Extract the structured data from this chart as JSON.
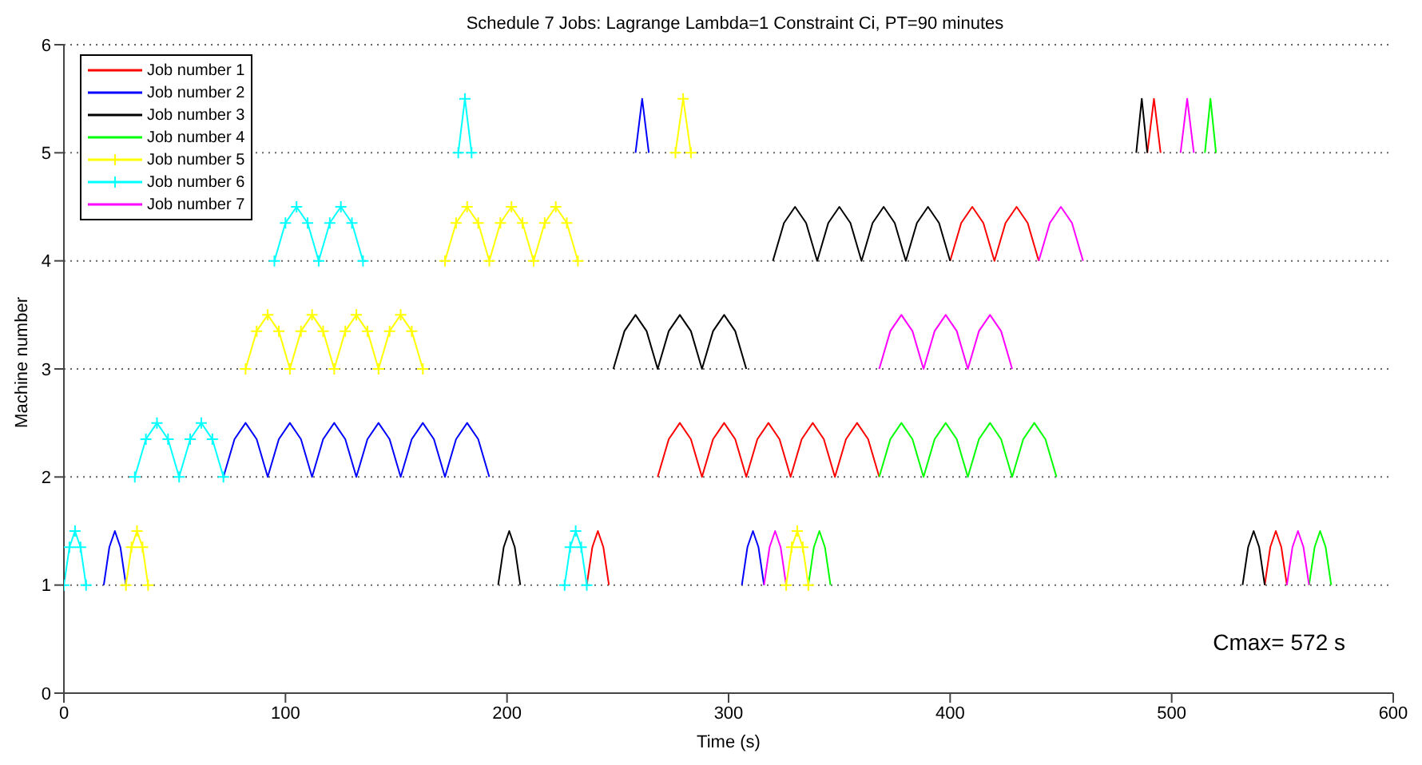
{
  "chart_data": {
    "type": "line",
    "title": "Schedule 7 Jobs: Lagrange Lambda=1 Constraint Ci, PT=90 minutes",
    "xlabel": "Time (s)",
    "ylabel": "Machine number",
    "annotations": [
      "Cmax= 572 s"
    ],
    "xlim": [
      0,
      600
    ],
    "xticks": [
      0,
      100,
      200,
      300,
      400,
      500,
      600
    ],
    "ylim": [
      0,
      6
    ],
    "yticks": [
      0,
      1,
      2,
      3,
      4,
      5,
      6
    ],
    "grid": "y",
    "legend": "top left",
    "series": [
      {
        "name": "Job number 1",
        "color": "#ff0000",
        "marker": "none",
        "x": [
          236,
          238.5,
          241,
          243.5,
          246,
          null,
          268,
          273,
          278,
          283,
          288,
          293,
          298,
          303,
          308,
          313,
          318,
          323,
          328,
          333,
          338,
          343,
          348,
          353,
          358,
          363,
          368,
          null,
          400,
          405,
          410,
          415,
          420,
          425,
          430,
          435,
          440,
          null,
          489,
          492,
          495,
          null,
          542,
          544.5,
          547,
          549.5,
          552
        ],
        "values": [
          1,
          1.35,
          1.5,
          1.35,
          1,
          null,
          2,
          2.35,
          2.5,
          2.35,
          2,
          2.35,
          2.5,
          2.35,
          2,
          2.35,
          2.5,
          2.35,
          2,
          2.35,
          2.5,
          2.35,
          2,
          2.35,
          2.5,
          2.35,
          2,
          null,
          4,
          4.35,
          4.5,
          4.35,
          4,
          4.35,
          4.5,
          4.35,
          4,
          null,
          5,
          5.5,
          5,
          null,
          1,
          1.35,
          1.5,
          1.35,
          1
        ]
      },
      {
        "name": "Job number 2",
        "color": "#0000ff",
        "marker": "none",
        "x": [
          18,
          20.5,
          23,
          25.5,
          28,
          null,
          72,
          77,
          82,
          87,
          92,
          97,
          102,
          107,
          112,
          117,
          122,
          127,
          132,
          137,
          142,
          147,
          152,
          157,
          162,
          167,
          172,
          177,
          182,
          187,
          192,
          null,
          258,
          261,
          264,
          null,
          306,
          308.5,
          311,
          313.5,
          316
        ],
        "values": [
          1,
          1.35,
          1.5,
          1.35,
          1,
          null,
          2,
          2.35,
          2.5,
          2.35,
          2,
          2.35,
          2.5,
          2.35,
          2,
          2.35,
          2.5,
          2.35,
          2,
          2.35,
          2.5,
          2.35,
          2,
          2.35,
          2.5,
          2.35,
          2,
          2.35,
          2.5,
          2.35,
          2,
          null,
          5,
          5.5,
          5,
          null,
          1,
          1.35,
          1.5,
          1.35,
          1
        ]
      },
      {
        "name": "Job number 3",
        "color": "#000000",
        "marker": "none",
        "x": [
          196,
          198.5,
          201,
          203.5,
          206,
          null,
          248,
          253,
          258,
          263,
          268,
          273,
          278,
          283,
          288,
          293,
          298,
          303,
          308,
          null,
          320,
          325,
          330,
          335,
          340,
          345,
          350,
          355,
          360,
          365,
          370,
          375,
          380,
          385,
          390,
          395,
          400,
          null,
          484,
          486.5,
          489,
          null,
          532,
          534.5,
          537,
          539.5,
          542
        ],
        "values": [
          1,
          1.35,
          1.5,
          1.35,
          1,
          null,
          3,
          3.35,
          3.5,
          3.35,
          3,
          3.35,
          3.5,
          3.35,
          3,
          3.35,
          3.5,
          3.35,
          3,
          null,
          4,
          4.35,
          4.5,
          4.35,
          4,
          4.35,
          4.5,
          4.35,
          4,
          4.35,
          4.5,
          4.35,
          4,
          4.35,
          4.5,
          4.35,
          4,
          null,
          5,
          5.5,
          5,
          null,
          1,
          1.35,
          1.5,
          1.35,
          1
        ]
      },
      {
        "name": "Job number 4",
        "color": "#00ff00",
        "marker": "none",
        "x": [
          336,
          338.5,
          341,
          343.5,
          346,
          null,
          368,
          373,
          378,
          383,
          388,
          393,
          398,
          403,
          408,
          413,
          418,
          423,
          428,
          433,
          438,
          443,
          448,
          null,
          515,
          517.5,
          520,
          null,
          562,
          564.5,
          567,
          569.5,
          572
        ],
        "values": [
          1,
          1.35,
          1.5,
          1.35,
          1,
          null,
          2,
          2.35,
          2.5,
          2.35,
          2,
          2.35,
          2.5,
          2.35,
          2,
          2.35,
          2.5,
          2.35,
          2,
          2.35,
          2.5,
          2.35,
          2,
          null,
          5,
          5.5,
          5,
          null,
          1,
          1.35,
          1.5,
          1.35,
          1
        ]
      },
      {
        "name": "Job number 5",
        "color": "#ffff00",
        "marker": "cross",
        "x": [
          28,
          30.5,
          33,
          35.5,
          38,
          null,
          82,
          87,
          92,
          97,
          102,
          107,
          112,
          117,
          122,
          127,
          132,
          137,
          142,
          147,
          152,
          157,
          162,
          null,
          172,
          177,
          182,
          187,
          192,
          197,
          202,
          207,
          212,
          217,
          222,
          227,
          232,
          null,
          276,
          279.5,
          283,
          null,
          326,
          328.5,
          331,
          333.5,
          336
        ],
        "values": [
          1,
          1.35,
          1.5,
          1.35,
          1,
          null,
          3,
          3.35,
          3.5,
          3.35,
          3,
          3.35,
          3.5,
          3.35,
          3,
          3.35,
          3.5,
          3.35,
          3,
          3.35,
          3.5,
          3.35,
          3,
          null,
          4,
          4.35,
          4.5,
          4.35,
          4,
          4.35,
          4.5,
          4.35,
          4,
          4.35,
          4.5,
          4.35,
          4,
          null,
          5,
          5.5,
          5,
          null,
          1,
          1.35,
          1.5,
          1.35,
          1
        ]
      },
      {
        "name": "Job number 6",
        "color": "#00ffff",
        "marker": "cross",
        "x": [
          0,
          2.5,
          5,
          7.5,
          10,
          null,
          32,
          37,
          42,
          47,
          52,
          57,
          62,
          67,
          72,
          null,
          95,
          100,
          105,
          110,
          115,
          120,
          125,
          130,
          135,
          null,
          178,
          181,
          184,
          null,
          226,
          228.5,
          231,
          233.5,
          236
        ],
        "values": [
          1,
          1.35,
          1.5,
          1.35,
          1,
          null,
          2,
          2.35,
          2.5,
          2.35,
          2,
          2.35,
          2.5,
          2.35,
          2,
          null,
          4,
          4.35,
          4.5,
          4.35,
          4,
          4.35,
          4.5,
          4.35,
          4,
          null,
          5,
          5.5,
          5,
          null,
          1,
          1.35,
          1.5,
          1.35,
          1
        ]
      },
      {
        "name": "Job number 7",
        "color": "#ff00ff",
        "marker": "none",
        "x": [
          316,
          318.5,
          321,
          323.5,
          326,
          null,
          368,
          373,
          378,
          383,
          388,
          393,
          398,
          403,
          408,
          413,
          418,
          423,
          428,
          null,
          440,
          445,
          450,
          455,
          460,
          null,
          504,
          507,
          510,
          null,
          552,
          554.5,
          557,
          559.5,
          562
        ],
        "values": [
          1,
          1.35,
          1.5,
          1.35,
          1,
          null,
          3,
          3.35,
          3.5,
          3.35,
          3,
          3.35,
          3.5,
          3.35,
          3,
          3.35,
          3.5,
          3.35,
          3,
          null,
          4,
          4.35,
          4.5,
          4.35,
          4,
          null,
          5,
          5.5,
          5,
          null,
          1,
          1.35,
          1.5,
          1.35,
          1
        ]
      }
    ]
  }
}
